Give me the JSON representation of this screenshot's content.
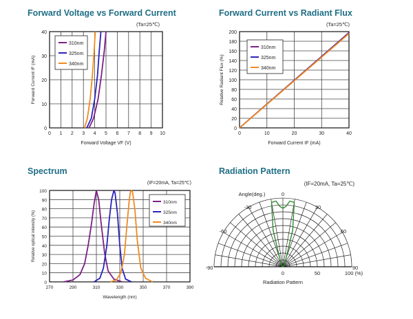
{
  "panels": {
    "fv_title": "Forward Voltage vs Forward Current",
    "rf_title": "Forward Current vs Radiant Flux",
    "sp_title": "Spectrum",
    "rp_title": "Radiation Pattern"
  },
  "colors": {
    "title": "#1f6e86",
    "310nm": "#7b1f86",
    "325nm": "#2a22b8",
    "340nm": "#f08a1e",
    "pattern": "#2f8a2f",
    "grid": "#222222"
  },
  "chart_data": [
    {
      "type": "line",
      "title": "Forward Voltage vs Forward Current",
      "condition": "(Ta=25℃)",
      "xlabel": "Forward Voltage VF (V)",
      "ylabel": "Forward Current IF (mA)",
      "xlim": [
        0,
        10
      ],
      "ylim": [
        0,
        40
      ],
      "xticks": [
        "0",
        "1",
        "2",
        "3",
        "4",
        "5",
        "6",
        "7",
        "8",
        "9",
        "10"
      ],
      "yticks": [
        "0",
        "10",
        "20",
        "30",
        "40"
      ],
      "grid": true,
      "legend": "top-left",
      "series": [
        {
          "name": "310nm",
          "x": [
            3.5,
            3.9,
            4.3,
            4.6,
            4.85,
            5.0
          ],
          "y": [
            0,
            4,
            12,
            22,
            32,
            40
          ]
        },
        {
          "name": "325nm",
          "x": [
            3.3,
            3.7,
            4.0,
            4.25,
            4.4,
            4.55
          ],
          "y": [
            0,
            4,
            12,
            22,
            32,
            40
          ]
        },
        {
          "name": "340nm",
          "x": [
            3.1,
            3.35,
            3.6,
            3.8,
            3.95,
            4.05
          ],
          "y": [
            0,
            4,
            12,
            22,
            32,
            40
          ]
        }
      ]
    },
    {
      "type": "line",
      "title": "Forward Current vs Radiant Flux",
      "condition": "(Ta=25℃)",
      "xlabel": "Forward Current IF (mA)",
      "ylabel": "Relative Radiant Flux (%)",
      "xlim": [
        0,
        40
      ],
      "ylim": [
        0,
        200
      ],
      "xticks": [
        "0",
        "10",
        "20",
        "30",
        "40"
      ],
      "yticks": [
        "0",
        "20",
        "40",
        "60",
        "80",
        "100",
        "120",
        "140",
        "160",
        "180",
        "200"
      ],
      "grid": true,
      "legend": "top-left",
      "series": [
        {
          "name": "310nm",
          "x": [
            0,
            40
          ],
          "y": [
            0,
            198
          ]
        },
        {
          "name": "325nm",
          "x": [
            0,
            40
          ],
          "y": [
            0,
            197
          ]
        },
        {
          "name": "340nm",
          "x": [
            0,
            40
          ],
          "y": [
            0,
            196
          ]
        }
      ]
    },
    {
      "type": "line",
      "title": "Spectrum",
      "condition": "(IF=20mA, Ta=25℃)",
      "xlabel": "Wavelength (nm)",
      "ylabel": "Relative optical intensity (%)",
      "xlim": [
        270,
        390
      ],
      "ylim": [
        0,
        100
      ],
      "xticks": [
        "270",
        "290",
        "310",
        "330",
        "350",
        "370",
        "390"
      ],
      "yticks": [
        "0",
        "10",
        "20",
        "30",
        "40",
        "50",
        "60",
        "70",
        "80",
        "90",
        "100"
      ],
      "grid": true,
      "legend": "top-right",
      "series": [
        {
          "name": "310nm",
          "x": [
            282,
            290,
            296,
            300,
            303,
            306,
            308,
            310,
            312,
            314,
            317,
            320,
            325,
            332
          ],
          "y": [
            0,
            2,
            8,
            20,
            40,
            65,
            85,
            100,
            90,
            65,
            32,
            12,
            3,
            0
          ]
        },
        {
          "name": "325nm",
          "x": [
            308,
            313,
            316,
            319,
            321,
            323,
            325,
            326,
            328,
            330,
            332,
            335,
            340
          ],
          "y": [
            0,
            4,
            15,
            40,
            68,
            90,
            100,
            97,
            75,
            40,
            15,
            3,
            0
          ]
        },
        {
          "name": "340nm",
          "x": [
            322,
            327,
            331,
            334,
            336,
            338,
            339,
            340,
            341,
            343,
            345,
            348,
            352,
            358
          ],
          "y": [
            0,
            2,
            10,
            30,
            60,
            88,
            98,
            100,
            98,
            78,
            45,
            15,
            4,
            0
          ]
        }
      ]
    },
    {
      "type": "polar",
      "title": "Radiation Pattern",
      "condition": "(IF=20mA, Ta=25℃)",
      "xlabel": "Radiation Pattern",
      "angle_label": "Angle(deg.)",
      "angle_ticks": [
        "-90",
        "-60",
        "-30",
        "0",
        "30",
        "60",
        "90"
      ],
      "radial_ticks": [
        "0",
        "50",
        "100 (%)"
      ],
      "series": [
        {
          "name": "pattern",
          "angle": [
            -90,
            -60,
            -45,
            -30,
            -20,
            -15,
            -10,
            -6,
            -3,
            0,
            3,
            6,
            10,
            15,
            20,
            30,
            45,
            60,
            90
          ],
          "value": [
            0,
            1,
            2,
            5,
            14,
            55,
            95,
            96,
            88,
            85,
            88,
            96,
            95,
            55,
            14,
            5,
            2,
            1,
            0
          ]
        }
      ]
    }
  ]
}
